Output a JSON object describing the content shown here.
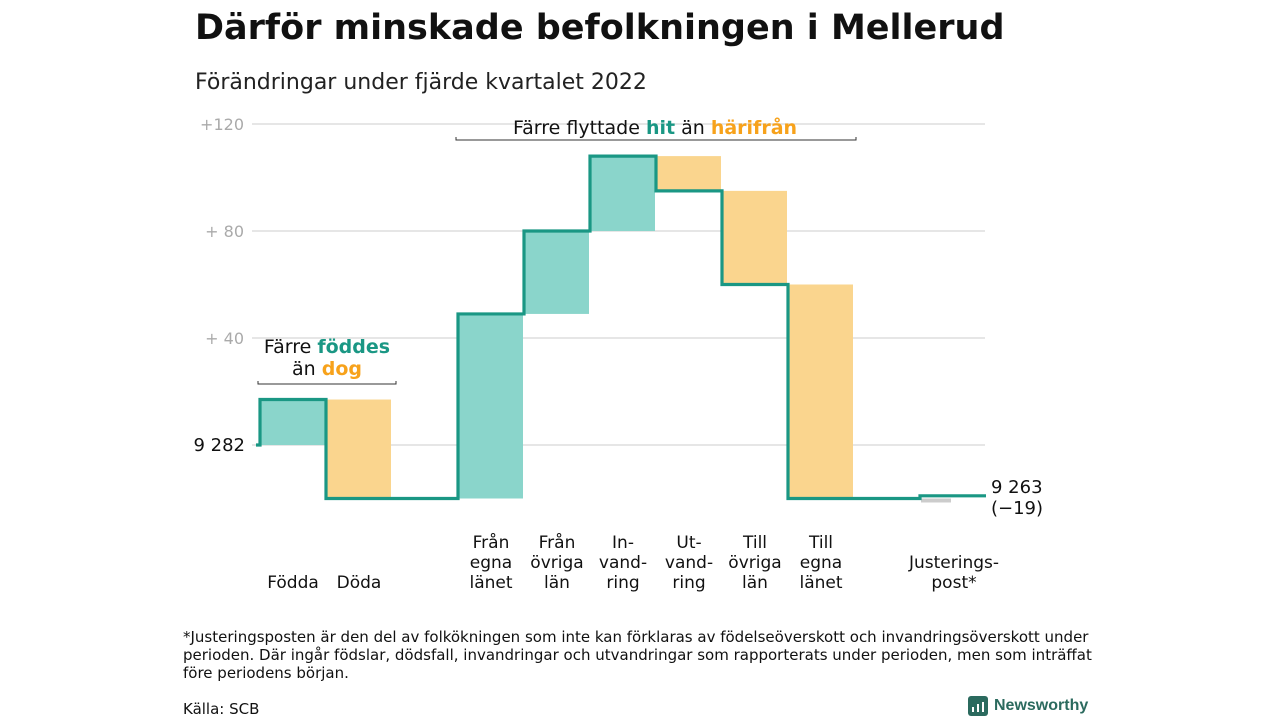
{
  "title": "Därför minskade befolkningen i Mellerud",
  "subtitle": "Förändringar under fjärde kvartalet 2022",
  "colors": {
    "teal": "#1a9784",
    "teal_fill": "#8ad5cb",
    "orange": "#f7a21b",
    "orange_fill": "#fad58e",
    "grid": "#dddddd",
    "tick": "#aaaaaa",
    "adjust": "#cccccc"
  },
  "chart_data": {
    "type": "waterfall",
    "start": {
      "label": "9 282"
    },
    "end": {
      "label": "9 263",
      "change": "(−19)"
    },
    "ylim": [
      -14,
      120
    ],
    "yticks": [
      {
        "value": 40,
        "label": "+ 40"
      },
      {
        "value": 80,
        "label": "+ 80"
      },
      {
        "value": 120,
        "label": "+120"
      }
    ],
    "grid_values": [
      0,
      40,
      80,
      120
    ],
    "steps": [
      {
        "label": [
          "Födda"
        ],
        "delta": 17,
        "kind": "pos"
      },
      {
        "label": [
          "Döda"
        ],
        "delta": -37,
        "kind": "neg"
      },
      {
        "label": [],
        "delta": 0,
        "kind": "gap"
      },
      {
        "label": [
          "Från",
          "egna",
          "länet"
        ],
        "delta": 69,
        "kind": "pos"
      },
      {
        "label": [
          "Från",
          "övriga",
          "län"
        ],
        "delta": 31,
        "kind": "pos"
      },
      {
        "label": [
          "In-",
          "vand-",
          "ring"
        ],
        "delta": 28,
        "kind": "pos"
      },
      {
        "label": [
          "Ut-",
          "vand-",
          "ring"
        ],
        "delta": -13,
        "kind": "neg"
      },
      {
        "label": [
          "Till",
          "övriga",
          "län"
        ],
        "delta": -35,
        "kind": "neg"
      },
      {
        "label": [
          "Till",
          "egna",
          "länet"
        ],
        "delta": -80,
        "kind": "neg"
      },
      {
        "label": [],
        "delta": 0,
        "kind": "gap"
      },
      {
        "label": [
          "Justerings-",
          "post*"
        ],
        "delta": 1,
        "kind": "adjust"
      }
    ],
    "annotations": [
      {
        "parts": [
          [
            "Färre ",
            "plain"
          ],
          [
            "föddes",
            "teal"
          ]
        ],
        "parts2": [
          [
            "än ",
            "plain"
          ],
          [
            "dog",
            "orange"
          ]
        ]
      },
      {
        "parts": [
          [
            "Färre flyttade ",
            "plain"
          ],
          [
            "hit",
            "teal"
          ],
          [
            " än ",
            "plain"
          ],
          [
            "härifrån",
            "orange"
          ]
        ]
      }
    ]
  },
  "footnote": "*Justeringsposten är den del av folkökningen som inte kan förklaras av födelseöverskott och invandringsöverskott under perioden. Där ingår födslar, dödsfall, invandringar och utvandringar som rapporterats under perioden, men som inträffat före periodens början.",
  "source": "Källa: SCB",
  "brand": {
    "name": "Newsworthy",
    "icon": "bar-chart-icon"
  }
}
